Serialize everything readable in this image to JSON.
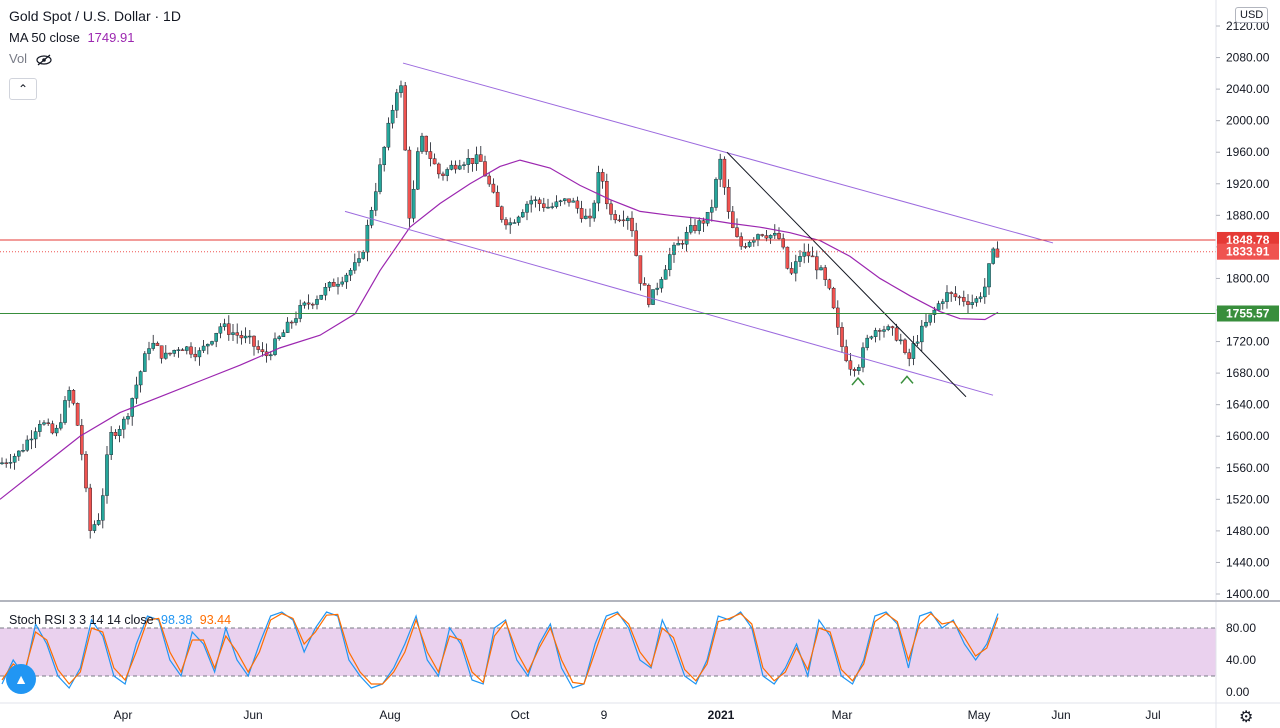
{
  "legend": {
    "symbol_title": "Gold Spot / U.S. Dollar · 1D",
    "ma_label": "MA 50 close",
    "ma_value": "1749.91",
    "vol_label": "Vol"
  },
  "currency_badge": "USD",
  "rsi_legend": {
    "label": "Stoch RSI 3 3 14 14 close",
    "k_value": "98.38",
    "d_value": "93.44"
  },
  "colors": {
    "up": "#26a69a",
    "down": "#ef5350",
    "ma": "#9c27b0",
    "channel": "#9c6ade",
    "resistance": "#e53935",
    "support": "#388e3c",
    "rsi_k": "#2196f3",
    "rsi_d": "#ff6d00",
    "rsi_band": "#e1bee7"
  },
  "chart_data": [
    {
      "type": "candlestick",
      "title": "Gold Spot / U.S. Dollar · 1D",
      "y_axis_ticks": [
        "2120.00",
        "2080.00",
        "2040.00",
        "2000.00",
        "1960.00",
        "1920.00",
        "1880.00",
        "1840.00",
        "1800.00",
        "1760.00",
        "1720.00",
        "1680.00",
        "1640.00",
        "1600.00",
        "1560.00",
        "1520.00",
        "1480.00",
        "1440.00",
        "1400.00"
      ],
      "ylim": [
        1395,
        2125
      ],
      "x_axis_ticks": [
        "Apr",
        "Jun",
        "Aug",
        "Oct",
        "9",
        "2021",
        "Mar",
        "May",
        "Jun",
        "Jul"
      ],
      "grid": false,
      "price_labels": [
        {
          "value": "1848.78",
          "role": "horizontal resistance line",
          "color": "resistance"
        },
        {
          "value": "1833.91",
          "role": "last price",
          "color": "down"
        },
        {
          "value": "1755.57",
          "role": "horizontal support line",
          "color": "support"
        }
      ],
      "series": [
        {
          "name": "MA 50 close",
          "points": [
            [
              0,
              1520
            ],
            [
              40,
              1560
            ],
            [
              80,
              1600
            ],
            [
              120,
              1630
            ],
            [
              160,
              1650
            ],
            [
              200,
              1670
            ],
            [
              240,
              1690
            ],
            [
              280,
              1712
            ],
            [
              320,
              1728
            ],
            [
              355,
              1755
            ],
            [
              380,
              1810
            ],
            [
              410,
              1865
            ],
            [
              440,
              1895
            ],
            [
              470,
              1920
            ],
            [
              500,
              1942
            ],
            [
              520,
              1950
            ],
            [
              550,
              1940
            ],
            [
              580,
              1918
            ],
            [
              610,
              1900
            ],
            [
              640,
              1885
            ],
            [
              670,
              1880
            ],
            [
              700,
              1876
            ],
            [
              730,
              1870
            ],
            [
              760,
              1865
            ],
            [
              790,
              1858
            ],
            [
              820,
              1848
            ],
            [
              850,
              1828
            ],
            [
              880,
              1800
            ],
            [
              910,
              1778
            ],
            [
              940,
              1758
            ],
            [
              960,
              1749
            ],
            [
              985,
              1748
            ],
            [
              998,
              1757
            ]
          ]
        },
        {
          "name": "price path (approx. daily close)",
          "points": [
            [
              0,
              1565
            ],
            [
              20,
              1580
            ],
            [
              40,
              1620
            ],
            [
              55,
              1600
            ],
            [
              70,
              1660
            ],
            [
              80,
              1600
            ],
            [
              90,
              1480
            ],
            [
              100,
              1500
            ],
            [
              110,
              1600
            ],
            [
              125,
              1620
            ],
            [
              140,
              1680
            ],
            [
              150,
              1720
            ],
            [
              165,
              1700
            ],
            [
              180,
              1715
            ],
            [
              200,
              1705
            ],
            [
              220,
              1740
            ],
            [
              235,
              1730
            ],
            [
              250,
              1720
            ],
            [
              265,
              1700
            ],
            [
              280,
              1725
            ],
            [
              300,
              1760
            ],
            [
              320,
              1780
            ],
            [
              340,
              1800
            ],
            [
              360,
              1820
            ],
            [
              370,
              1880
            ],
            [
              380,
              1940
            ],
            [
              390,
              2000
            ],
            [
              400,
              2060
            ],
            [
              410,
              1870
            ],
            [
              420,
              1980
            ],
            [
              440,
              1930
            ],
            [
              460,
              1950
            ],
            [
              480,
              1950
            ],
            [
              500,
              1880
            ],
            [
              510,
              1870
            ],
            [
              530,
              1900
            ],
            [
              550,
              1890
            ],
            [
              570,
              1900
            ],
            [
              590,
              1870
            ],
            [
              600,
              1940
            ],
            [
              610,
              1880
            ],
            [
              630,
              1880
            ],
            [
              640,
              1800
            ],
            [
              650,
              1770
            ],
            [
              660,
              1800
            ],
            [
              670,
              1830
            ],
            [
              690,
              1860
            ],
            [
              710,
              1880
            ],
            [
              720,
              1950
            ],
            [
              730,
              1870
            ],
            [
              740,
              1840
            ],
            [
              760,
              1860
            ],
            [
              780,
              1850
            ],
            [
              790,
              1800
            ],
            [
              800,
              1830
            ],
            [
              810,
              1830
            ],
            [
              820,
              1810
            ],
            [
              830,
              1780
            ],
            [
              840,
              1720
            ],
            [
              850,
              1690
            ],
            [
              858,
              1690
            ],
            [
              870,
              1730
            ],
            [
              880,
              1740
            ],
            [
              900,
              1725
            ],
            [
              907,
              1690
            ],
            [
              915,
              1720
            ],
            [
              930,
              1750
            ],
            [
              945,
              1780
            ],
            [
              960,
              1775
            ],
            [
              975,
              1770
            ],
            [
              985,
              1790
            ],
            [
              992,
              1830
            ],
            [
              998,
              1834
            ]
          ]
        }
      ],
      "annotations": [
        {
          "type": "channel_upper",
          "from": [
            403,
            2073
          ],
          "to": [
            1053,
            1845
          ]
        },
        {
          "type": "channel_lower",
          "from": [
            345,
            1885
          ],
          "to": [
            993,
            1652
          ]
        },
        {
          "type": "trendline",
          "from": [
            727,
            1960
          ],
          "to": [
            966,
            1650
          ]
        },
        {
          "type": "caret_marker",
          "at": [
            858,
            1670
          ]
        },
        {
          "type": "caret_marker",
          "at": [
            907,
            1672
          ]
        }
      ]
    },
    {
      "type": "line",
      "title": "Stoch RSI 3 3 14 14 close",
      "y_axis_ticks": [
        "80.00",
        "40.00",
        "0.00"
      ],
      "ylim": [
        -5,
        108
      ],
      "band": [
        20,
        80
      ],
      "series": [
        {
          "name": "K",
          "values": [
            10,
            40,
            20,
            85,
            60,
            20,
            5,
            30,
            90,
            70,
            20,
            10,
            60,
            95,
            90,
            40,
            20,
            75,
            60,
            25,
            80,
            40,
            20,
            60,
            95,
            100,
            90,
            50,
            80,
            100,
            95,
            40,
            20,
            5,
            10,
            30,
            60,
            95,
            40,
            20,
            80,
            60,
            15,
            10,
            80,
            90,
            40,
            20,
            60,
            85,
            30,
            5,
            10,
            60,
            95,
            100,
            80,
            40,
            30,
            90,
            60,
            20,
            10,
            40,
            95,
            90,
            100,
            80,
            20,
            10,
            30,
            60,
            20,
            90,
            70,
            20,
            10,
            40,
            95,
            100,
            85,
            30,
            95,
            100,
            80,
            90,
            60,
            40,
            60,
            98
          ]
        },
        {
          "name": "D",
          "values": [
            15,
            35,
            25,
            75,
            65,
            28,
            10,
            25,
            80,
            75,
            30,
            15,
            50,
            90,
            92,
            50,
            25,
            65,
            65,
            30,
            70,
            50,
            25,
            50,
            90,
            98,
            92,
            60,
            75,
            96,
            97,
            50,
            25,
            10,
            10,
            25,
            50,
            90,
            50,
            25,
            70,
            65,
            25,
            12,
            70,
            88,
            50,
            25,
            55,
            80,
            40,
            12,
            10,
            50,
            90,
            98,
            85,
            50,
            32,
            80,
            68,
            28,
            14,
            35,
            88,
            92,
            98,
            85,
            30,
            14,
            25,
            55,
            28,
            80,
            75,
            28,
            14,
            35,
            88,
            98,
            88,
            40,
            85,
            98,
            85,
            88,
            68,
            45,
            55,
            93
          ]
        }
      ]
    }
  ]
}
